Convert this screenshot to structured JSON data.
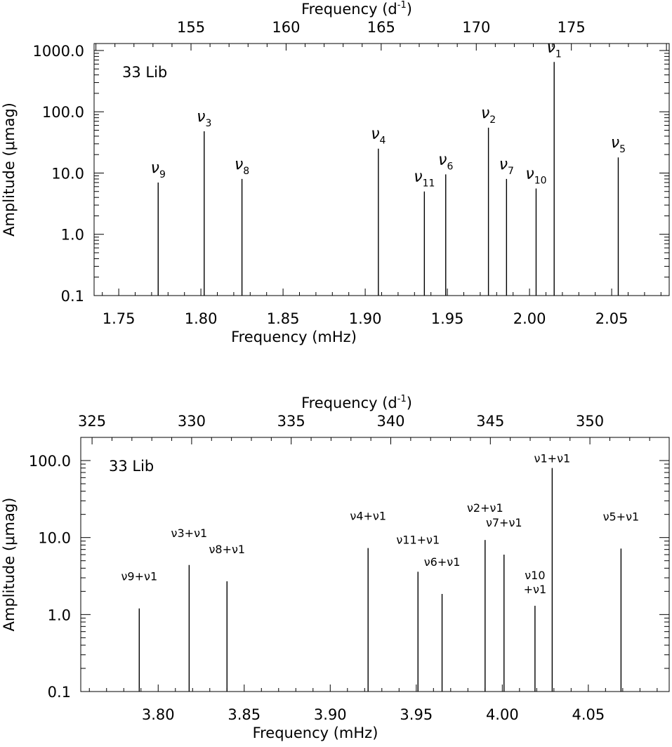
{
  "chart_data": [
    {
      "type": "bar",
      "subtype": "stem-spectrum",
      "star_label": "33 Lib",
      "xlabel": "Frequency (mHz)",
      "x2label": "Frequency (d⁻¹)",
      "ylabel": "Amplitude (μmag)",
      "yscale": "log",
      "xlim": [
        1.735,
        2.085
      ],
      "ylim": [
        0.1,
        1300
      ],
      "x_ticks": [
        "1.75",
        "1.80",
        "1.85",
        "1.90",
        "1.95",
        "2.00",
        "2.05"
      ],
      "x2_ticks": [
        "155",
        "160",
        "165",
        "170",
        "175"
      ],
      "y_ticks": [
        "0.1",
        "1.0",
        "10.0",
        "100.0",
        "1000.0"
      ],
      "grid": false,
      "points": [
        {
          "label_base": "ν",
          "label_sub": "9",
          "x": 1.774,
          "y": 7.0
        },
        {
          "label_base": "ν",
          "label_sub": "3",
          "x": 1.802,
          "y": 48.0
        },
        {
          "label_base": "ν",
          "label_sub": "8",
          "x": 1.825,
          "y": 8.0
        },
        {
          "label_base": "ν",
          "label_sub": "4",
          "x": 1.908,
          "y": 25.0
        },
        {
          "label_base": "ν",
          "label_sub": "11",
          "x": 1.936,
          "y": 5.0
        },
        {
          "label_base": "ν",
          "label_sub": "6",
          "x": 1.949,
          "y": 9.5
        },
        {
          "label_base": "ν",
          "label_sub": "2",
          "x": 1.975,
          "y": 55.0
        },
        {
          "label_base": "ν",
          "label_sub": "7",
          "x": 1.986,
          "y": 8.0
        },
        {
          "label_base": "ν",
          "label_sub": "10",
          "x": 2.004,
          "y": 5.6
        },
        {
          "label_base": "ν",
          "label_sub": "1",
          "x": 2.015,
          "y": 650.0
        },
        {
          "label_base": "ν",
          "label_sub": "5",
          "x": 2.054,
          "y": 18.0
        }
      ]
    },
    {
      "type": "bar",
      "subtype": "stem-spectrum",
      "star_label": "33 Lib",
      "xlabel": "Frequency (mHz)",
      "x2label": "Frequency (d⁻¹)",
      "ylabel": "Amplitude (μmag)",
      "yscale": "log",
      "xlim": [
        3.755,
        4.097
      ],
      "ylim": [
        0.1,
        200
      ],
      "x_ticks": [
        "3.80",
        "3.85",
        "3.90",
        "3.95",
        "4.00",
        "4.05"
      ],
      "x2_ticks": [
        "325",
        "330",
        "335",
        "340",
        "345",
        "350"
      ],
      "y_ticks": [
        "0.1",
        "1.0",
        "10.0",
        "100.0"
      ],
      "grid": false,
      "points": [
        {
          "label": "ν9+ν1",
          "x": 3.789,
          "y": 1.2
        },
        {
          "label": "ν3+ν1",
          "x": 3.818,
          "y": 4.4
        },
        {
          "label": "ν8+ν1",
          "x": 3.84,
          "y": 2.7
        },
        {
          "label": "ν4+ν1",
          "x": 3.922,
          "y": 7.3
        },
        {
          "label": "ν11+ν1",
          "x": 3.951,
          "y": 3.6
        },
        {
          "label": "ν6+ν1",
          "x": 3.965,
          "y": 1.85
        },
        {
          "label": "ν2+ν1",
          "x": 3.99,
          "y": 9.3
        },
        {
          "label": "ν7+ν1",
          "x": 4.001,
          "y": 6.0
        },
        {
          "label": "ν10+ν1",
          "x": 4.019,
          "y": 1.3
        },
        {
          "label": "ν1+ν1",
          "x": 4.029,
          "y": 80.0
        },
        {
          "label": "ν5+ν1",
          "x": 4.069,
          "y": 7.2
        }
      ]
    }
  ]
}
